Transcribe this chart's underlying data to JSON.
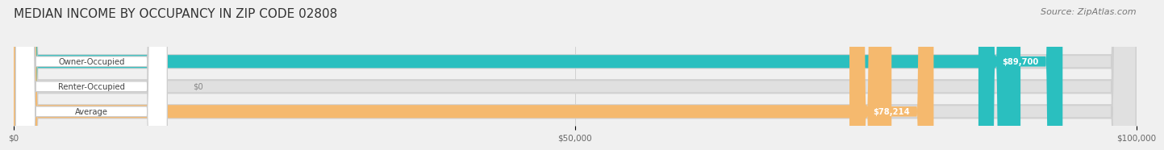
{
  "title": "MEDIAN INCOME BY OCCUPANCY IN ZIP CODE 02808",
  "source": "Source: ZipAtlas.com",
  "categories": [
    "Owner-Occupied",
    "Renter-Occupied",
    "Average"
  ],
  "values": [
    89700,
    0,
    78214
  ],
  "bar_colors": [
    "#2abfbf",
    "#c8a8d8",
    "#f5b96e"
  ],
  "bar_labels": [
    "$89,700",
    "$0",
    "$78,214"
  ],
  "label_text_colors": [
    "#ffffff",
    "#888888",
    "#ffffff"
  ],
  "xlim": [
    0,
    100000
  ],
  "xticks": [
    0,
    50000,
    100000
  ],
  "xticklabels": [
    "$0",
    "$50,000",
    "$100,000"
  ],
  "background_color": "#f0f0f0",
  "bar_bg_color": "#e0e0e0",
  "title_fontsize": 11,
  "source_fontsize": 8,
  "bar_height": 0.52
}
